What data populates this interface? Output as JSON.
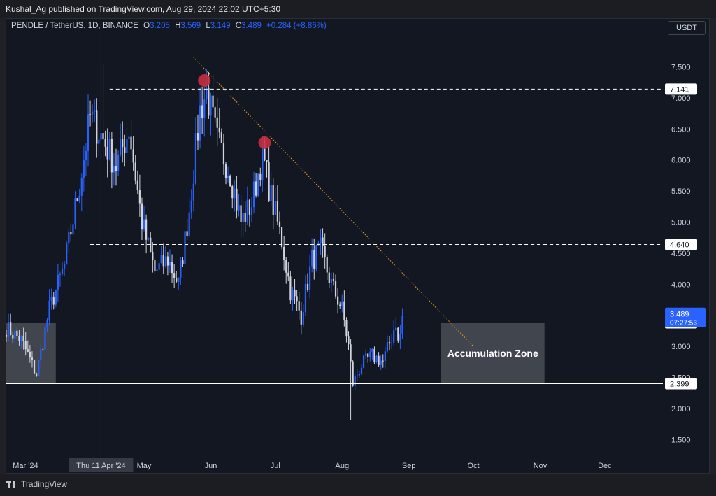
{
  "header": {
    "published_line": "Kushal_Ag published on TradingView.com, Aug 29, 2024 22:02 UTC+5:30",
    "symbol_line": "PENDLE / TetherUS, 1D, BINANCE",
    "ohlc": {
      "o_label": "O",
      "o_value": "3.205",
      "h_label": "H",
      "h_value": "3.569",
      "l_label": "L",
      "l_value": "3.149",
      "c_label": "C",
      "c_value": "3.489",
      "change": "+0.284 (+8.86%)"
    },
    "currency_button": "USDT"
  },
  "footer": {
    "brand": "TradingView"
  },
  "colors": {
    "background": "#131722",
    "up_candle": "#2962ff",
    "down_candle": "#d1d4dc",
    "level_line": "#ffffff",
    "trendline": "#f5a623",
    "swing_marker": "#c62f3e",
    "zone_fill": "#4a4d55"
  },
  "chart_data": {
    "type": "candlestick",
    "y_scale": "linear",
    "y_range": [
      1.2,
      7.9
    ],
    "y_ticks": [
      1.5,
      2.0,
      2.5,
      3.0,
      3.5,
      4.0,
      4.5,
      5.0,
      5.5,
      6.0,
      6.5,
      7.0,
      7.5
    ],
    "y_tick_labels": [
      "1.500",
      "2.000",
      "2.500",
      "3.000",
      "3.500",
      "4.000",
      "4.500",
      "5.000",
      "5.500",
      "6.000",
      "6.500",
      "7.000",
      "7.500"
    ],
    "x_range": [
      "2024-02-27",
      "2024-12-28"
    ],
    "x_ticks": [
      {
        "date": "2024-03-01",
        "label": "Mar '24"
      },
      {
        "date": "2024-05-01",
        "label": "May"
      },
      {
        "date": "2024-06-01",
        "label": "Jun"
      },
      {
        "date": "2024-07-01",
        "label": "Jul"
      },
      {
        "date": "2024-08-01",
        "label": "Aug"
      },
      {
        "date": "2024-09-01",
        "label": "Sep"
      },
      {
        "date": "2024-10-01",
        "label": "Oct"
      },
      {
        "date": "2024-11-01",
        "label": "Nov"
      },
      {
        "date": "2024-12-01",
        "label": "Dec"
      }
    ],
    "crosshair": {
      "date": "2024-04-11",
      "label": "Thu 11 Apr '24"
    },
    "close_series": [
      {
        "date": "2024-02-27",
        "close": 3.3
      },
      {
        "date": "2024-03-05",
        "close": 3.1
      },
      {
        "date": "2024-03-12",
        "close": 2.55
      },
      {
        "date": "2024-03-18",
        "close": 3.6
      },
      {
        "date": "2024-03-25",
        "close": 4.3
      },
      {
        "date": "2024-04-01",
        "close": 5.6
      },
      {
        "date": "2024-04-06",
        "close": 6.7
      },
      {
        "date": "2024-04-11",
        "close": 6.4
      },
      {
        "date": "2024-04-18",
        "close": 5.9
      },
      {
        "date": "2024-04-24",
        "close": 6.5
      },
      {
        "date": "2024-04-30",
        "close": 5.0
      },
      {
        "date": "2024-05-06",
        "close": 4.2
      },
      {
        "date": "2024-05-12",
        "close": 4.4
      },
      {
        "date": "2024-05-17",
        "close": 4.0
      },
      {
        "date": "2024-05-22",
        "close": 5.2
      },
      {
        "date": "2024-05-27",
        "close": 6.8
      },
      {
        "date": "2024-05-30",
        "close": 7.1
      },
      {
        "date": "2024-06-04",
        "close": 6.3
      },
      {
        "date": "2024-06-10",
        "close": 5.8
      },
      {
        "date": "2024-06-15",
        "close": 5.0
      },
      {
        "date": "2024-06-20",
        "close": 5.3
      },
      {
        "date": "2024-06-25",
        "close": 6.1
      },
      {
        "date": "2024-06-29",
        "close": 5.4
      },
      {
        "date": "2024-07-04",
        "close": 4.7
      },
      {
        "date": "2024-07-08",
        "close": 3.9
      },
      {
        "date": "2024-07-13",
        "close": 3.5
      },
      {
        "date": "2024-07-18",
        "close": 4.4
      },
      {
        "date": "2024-07-22",
        "close": 4.55
      },
      {
        "date": "2024-07-27",
        "close": 4.0
      },
      {
        "date": "2024-08-01",
        "close": 3.6
      },
      {
        "date": "2024-08-04",
        "close": 3.0
      },
      {
        "date": "2024-08-06",
        "close": 2.4
      },
      {
        "date": "2024-08-10",
        "close": 2.7
      },
      {
        "date": "2024-08-15",
        "close": 2.85
      },
      {
        "date": "2024-08-20",
        "close": 2.75
      },
      {
        "date": "2024-08-24",
        "close": 3.15
      },
      {
        "date": "2024-08-26",
        "close": 3.4
      },
      {
        "date": "2024-08-27",
        "close": 3.05
      },
      {
        "date": "2024-08-28",
        "close": 3.2
      },
      {
        "date": "2024-08-29",
        "close": 3.489
      }
    ],
    "extreme_wicks": [
      {
        "date": "2024-04-12",
        "value": 7.55
      },
      {
        "date": "2024-08-05",
        "value": 1.82
      }
    ],
    "levels": [
      {
        "value": 7.141,
        "label": "7.141",
        "style": "dashed",
        "from": "2024-04-15"
      },
      {
        "value": 4.64,
        "label": "4.640",
        "style": "dashed",
        "from": "2024-04-06"
      },
      {
        "value": 3.379,
        "label": "3.379",
        "style": "solid",
        "from": "2024-02-27"
      },
      {
        "value": 2.399,
        "label": "2.399",
        "style": "solid",
        "from": "2024-02-27"
      }
    ],
    "current_price": {
      "value": 3.489,
      "label": "3.489",
      "countdown": "07:27:53"
    },
    "trendline": {
      "start": {
        "date": "2024-05-24",
        "value": 7.65
      },
      "end": {
        "date": "2024-10-01",
        "value": 3.0
      },
      "style": "dotted"
    },
    "swing_markers": [
      {
        "date": "2024-05-29",
        "value": 7.28
      },
      {
        "date": "2024-06-26",
        "value": 6.28
      }
    ],
    "zones": [
      {
        "from": "2024-02-27",
        "to": "2024-03-21",
        "low": 2.399,
        "high": 3.379,
        "label": ""
      },
      {
        "from": "2024-09-16",
        "to": "2024-11-03",
        "low": 2.399,
        "high": 3.379,
        "label": "Accumulation Zone"
      }
    ]
  }
}
